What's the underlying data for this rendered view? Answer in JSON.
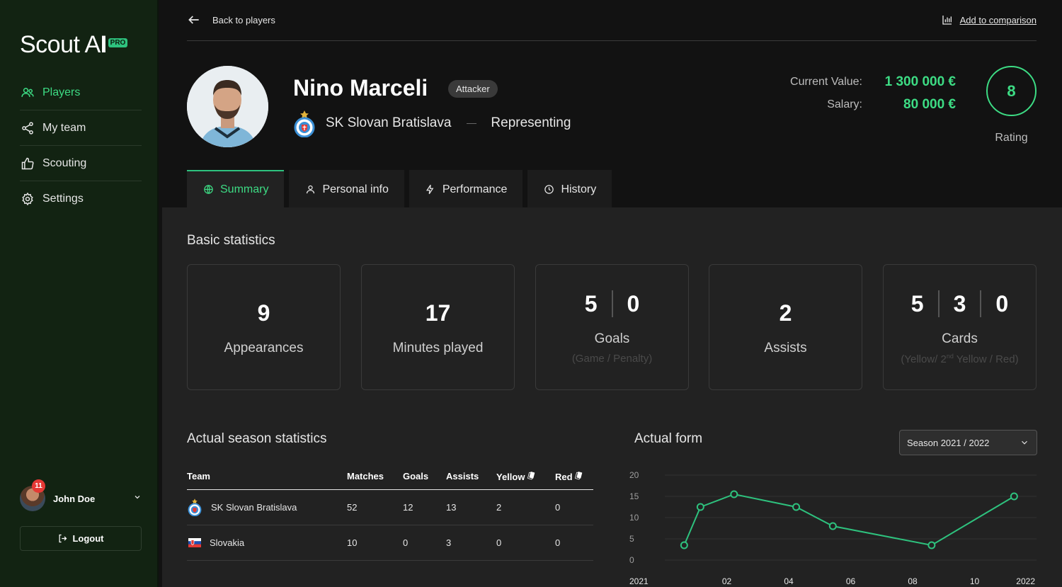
{
  "sidebar": {
    "logo_text": "Scout A",
    "logo_accent": "I",
    "pro_badge": "PRO",
    "items": [
      {
        "label": "Players",
        "icon": "users-icon",
        "active": true
      },
      {
        "label": "My team",
        "icon": "share-icon",
        "active": false
      },
      {
        "label": "Scouting",
        "icon": "thumbs-up-icon",
        "active": false
      },
      {
        "label": "Settings",
        "icon": "gear-icon",
        "active": false
      }
    ],
    "user": {
      "name": "John Doe",
      "notifications": "11"
    },
    "logout_label": "Logout"
  },
  "topbar": {
    "back_label": "Back to players",
    "compare_label": "Add to comparison"
  },
  "player": {
    "name": "Nino Marceli",
    "position": "Attacker",
    "club": "SK Slovan Bratislava",
    "representing": "Representing",
    "current_value_label": "Current Value:",
    "current_value": "1 300 000 €",
    "salary_label": "Salary:",
    "salary": "80 000 €",
    "rating": "8",
    "rating_label": "Rating"
  },
  "tabs": [
    {
      "label": "Summary",
      "icon": "globe-icon",
      "active": true
    },
    {
      "label": "Personal info",
      "icon": "person-icon",
      "active": false
    },
    {
      "label": "Performance",
      "icon": "lightning-icon",
      "active": false
    },
    {
      "label": "History",
      "icon": "clock-icon",
      "active": false
    }
  ],
  "basic_stats": {
    "title": "Basic statistics",
    "appearances": {
      "value": "9",
      "label": "Appearances"
    },
    "minutes": {
      "value": "17",
      "label": "Minutes played"
    },
    "goals": {
      "game": "5",
      "penalty": "0",
      "label": "Goals",
      "sub": "(Game / Penalty)"
    },
    "assists": {
      "value": "2",
      "label": "Assists"
    },
    "cards": {
      "yellow": "5",
      "second_yellow": "3",
      "red": "0",
      "label": "Cards",
      "sub_a": "(Yellow/ 2",
      "sub_sup": "nd",
      "sub_b": " Yellow / Red)"
    }
  },
  "season_stats": {
    "title": "Actual season statistics",
    "columns": [
      "Team",
      "Matches",
      "Goals",
      "Assists",
      "Yellow",
      "Red"
    ],
    "rows": [
      {
        "team": "SK Slovan Bratislava",
        "matches": "52",
        "goals": "12",
        "assists": "13",
        "yellow": "2",
        "red": "0"
      },
      {
        "team": "Slovakia",
        "matches": "10",
        "goals": "0",
        "assists": "3",
        "yellow": "0",
        "red": "0"
      }
    ]
  },
  "form": {
    "title": "Actual form",
    "season_select": "Season 2021 / 2022"
  },
  "chart_data": {
    "type": "line",
    "x": [
      "2021-01-20",
      "2021-02-05",
      "2021-03-10",
      "2021-05-10",
      "2021-06-15",
      "2021-09-20",
      "2021-12-10"
    ],
    "series": [
      {
        "values": [
          3.5,
          12.5,
          15.5,
          12.5,
          8,
          3.5,
          15
        ]
      }
    ],
    "x_ticks": [
      "2021",
      "02",
      "04",
      "06",
      "08",
      "10",
      "2022"
    ],
    "y_ticks": [
      "20",
      "15",
      "10",
      "5",
      "0"
    ],
    "ylim": [
      0,
      20
    ],
    "xlim": [
      "2021-01-01",
      "2022-01-01"
    ],
    "grid": true,
    "line_color": "#2ec27e"
  },
  "colors": {
    "accent": "#3ddc84",
    "sidebar_bg": "#122312",
    "panel_bg": "#222222"
  }
}
